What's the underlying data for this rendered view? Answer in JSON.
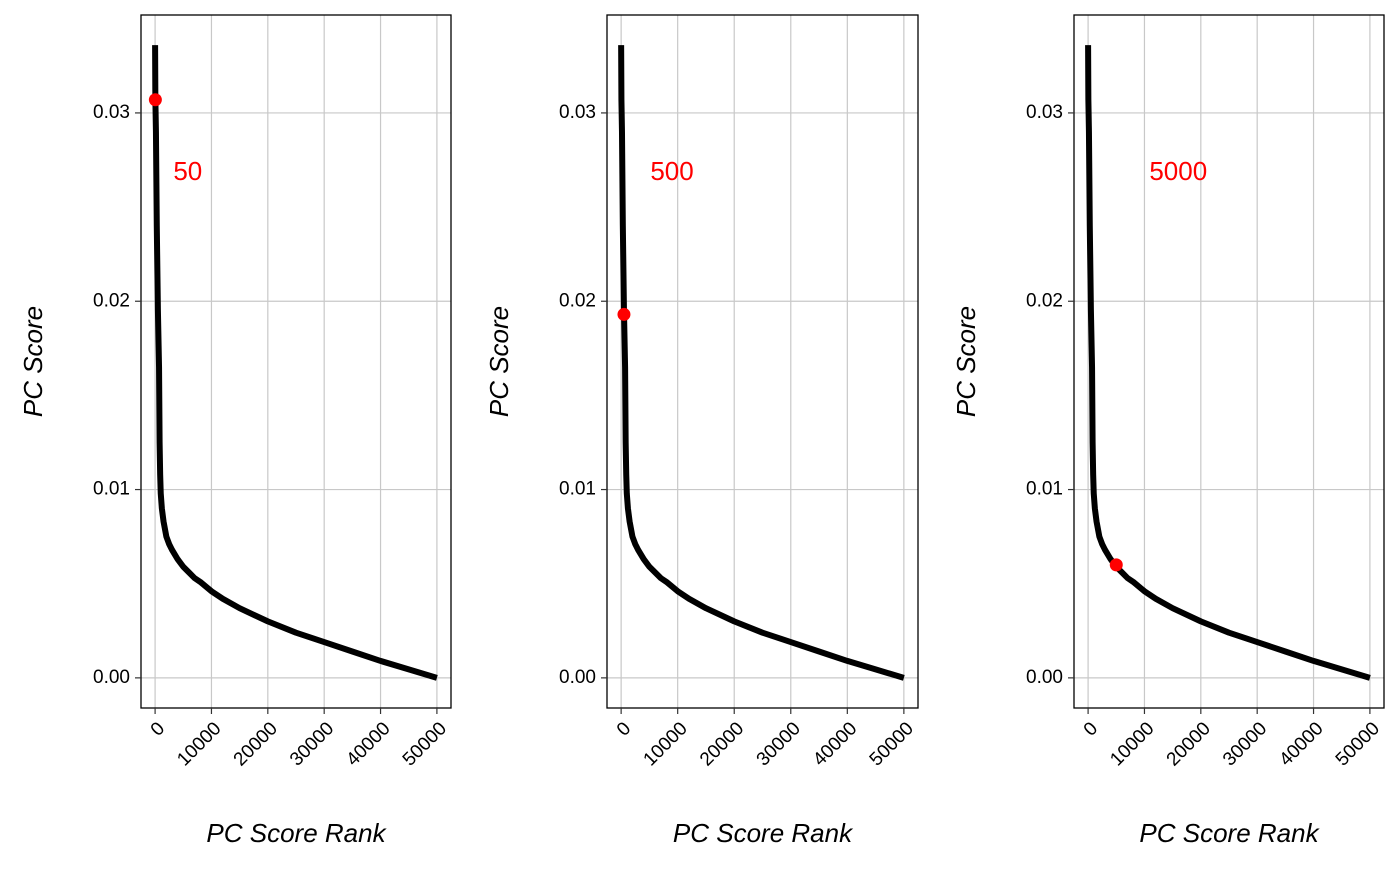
{
  "chart_data": [
    {
      "type": "line",
      "title": "",
      "xlabel": "PC Score Rank",
      "ylabel": "PC Score",
      "xlim": [
        -2500,
        52500
      ],
      "ylim": [
        -0.0016,
        0.0352
      ],
      "xticks": [
        0,
        10000,
        20000,
        30000,
        40000,
        50000
      ],
      "xtick_labels": [
        "0",
        "10000",
        "20000",
        "30000",
        "40000",
        "50000"
      ],
      "yticks": [
        0.0,
        0.01,
        0.02,
        0.03
      ],
      "ytick_labels": [
        "0.00",
        "0.01",
        "0.02",
        "0.03"
      ],
      "grid": true,
      "series": [
        {
          "x": [
            0,
            50,
            150,
            300,
            500,
            700,
            800,
            900,
            1000,
            1200,
            1500,
            2000,
            2500,
            3000,
            4000,
            5000,
            6000,
            7000,
            8000,
            10000,
            12000,
            15000,
            20000,
            25000,
            30000,
            35000,
            40000,
            45000,
            50000
          ],
          "y": [
            0.0336,
            0.0307,
            0.029,
            0.024,
            0.0195,
            0.0165,
            0.0125,
            0.0108,
            0.0098,
            0.009,
            0.0083,
            0.0075,
            0.0071,
            0.0068,
            0.0063,
            0.0059,
            0.0056,
            0.0053,
            0.0051,
            0.0046,
            0.0042,
            0.0037,
            0.003,
            0.0024,
            0.0019,
            0.0014,
            0.0009,
            0.00045,
            0.0
          ]
        }
      ],
      "highlight_point": {
        "x": 50,
        "y": 0.0307,
        "color": "#ff0000"
      },
      "annotation": {
        "text": "50",
        "x": 5800,
        "y": 0.0268,
        "color": "#ff0000"
      }
    },
    {
      "type": "line",
      "title": "",
      "xlabel": "PC Score Rank",
      "ylabel": "PC Score",
      "xlim": [
        -2500,
        52500
      ],
      "ylim": [
        -0.0016,
        0.0352
      ],
      "xticks": [
        0,
        10000,
        20000,
        30000,
        40000,
        50000
      ],
      "xtick_labels": [
        "0",
        "10000",
        "20000",
        "30000",
        "40000",
        "50000"
      ],
      "yticks": [
        0.0,
        0.01,
        0.02,
        0.03
      ],
      "ytick_labels": [
        "0.00",
        "0.01",
        "0.02",
        "0.03"
      ],
      "grid": true,
      "series": [
        {
          "x": [
            0,
            50,
            150,
            300,
            500,
            700,
            800,
            900,
            1000,
            1200,
            1500,
            2000,
            2500,
            3000,
            4000,
            5000,
            6000,
            7000,
            8000,
            10000,
            12000,
            15000,
            20000,
            25000,
            30000,
            35000,
            40000,
            45000,
            50000
          ],
          "y": [
            0.0336,
            0.0307,
            0.029,
            0.024,
            0.0195,
            0.0165,
            0.0125,
            0.0108,
            0.0098,
            0.009,
            0.0083,
            0.0075,
            0.0071,
            0.0068,
            0.0063,
            0.0059,
            0.0056,
            0.0053,
            0.0051,
            0.0046,
            0.0042,
            0.0037,
            0.003,
            0.0024,
            0.0019,
            0.0014,
            0.0009,
            0.00045,
            0.0
          ]
        }
      ],
      "highlight_point": {
        "x": 500,
        "y": 0.0193,
        "color": "#ff0000"
      },
      "annotation": {
        "text": "500",
        "x": 9000,
        "y": 0.0268,
        "color": "#ff0000"
      }
    },
    {
      "type": "line",
      "title": "",
      "xlabel": "PC Score Rank",
      "ylabel": "PC Score",
      "xlim": [
        -2500,
        52500
      ],
      "ylim": [
        -0.0016,
        0.0352
      ],
      "xticks": [
        0,
        10000,
        20000,
        30000,
        40000,
        50000
      ],
      "xtick_labels": [
        "0",
        "10000",
        "20000",
        "30000",
        "40000",
        "50000"
      ],
      "yticks": [
        0.0,
        0.01,
        0.02,
        0.03
      ],
      "ytick_labels": [
        "0.00",
        "0.01",
        "0.02",
        "0.03"
      ],
      "grid": true,
      "series": [
        {
          "x": [
            0,
            50,
            150,
            300,
            500,
            700,
            800,
            900,
            1000,
            1200,
            1500,
            2000,
            2500,
            3000,
            4000,
            5000,
            6000,
            7000,
            8000,
            10000,
            12000,
            15000,
            20000,
            25000,
            30000,
            35000,
            40000,
            45000,
            50000
          ],
          "y": [
            0.0336,
            0.0307,
            0.029,
            0.024,
            0.0195,
            0.0165,
            0.0125,
            0.0108,
            0.0098,
            0.009,
            0.0083,
            0.0075,
            0.0071,
            0.0068,
            0.0063,
            0.0059,
            0.0056,
            0.0053,
            0.0051,
            0.0046,
            0.0042,
            0.0037,
            0.003,
            0.0024,
            0.0019,
            0.0014,
            0.0009,
            0.00045,
            0.0
          ]
        }
      ],
      "highlight_point": {
        "x": 5000,
        "y": 0.006,
        "color": "#ff0000"
      },
      "annotation": {
        "text": "5000",
        "x": 16000,
        "y": 0.0268,
        "color": "#ff0000"
      }
    }
  ]
}
